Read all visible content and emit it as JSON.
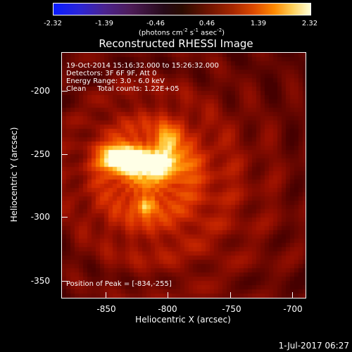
{
  "colorbar": {
    "ticks": [
      "-2.32",
      "-1.39",
      "-0.46",
      "0.46",
      "1.39",
      "2.32"
    ],
    "units_prefix": "(photons cm",
    "units_exp1": "-2",
    "units_mid1": " s",
    "units_exp2": "-1",
    "units_mid2": " asec",
    "units_exp3": "-2",
    "units_suffix": ")"
  },
  "plot": {
    "title": "Reconstructed RHESSI Image",
    "info_line1": "19-Oct-2014 15:16:32.000 to 15:26:32.000",
    "info_line2": "Detectors: 3F 6F 9F, Att 0",
    "info_line3": "Energy Range: 3.0 - 6.0 keV",
    "info_line4": "Clean     Total counts: 1.22E+05",
    "peak_text": "Position of Peak = [-834,-255]"
  },
  "axes": {
    "xlabel": "Heliocentric X (arcsec)",
    "ylabel": "Heliocentric Y (arcsec)",
    "xticks": [
      "-850",
      "-800",
      "-750",
      "-700"
    ],
    "yticks": [
      "-200",
      "-250",
      "-300",
      "-350"
    ]
  },
  "image_data": {
    "x_range": [
      -888,
      -695
    ],
    "y_range": [
      -169,
      -363
    ],
    "peak": [
      -834,
      -255
    ]
  },
  "timestamp": "1-Jul-2017 06:27"
}
